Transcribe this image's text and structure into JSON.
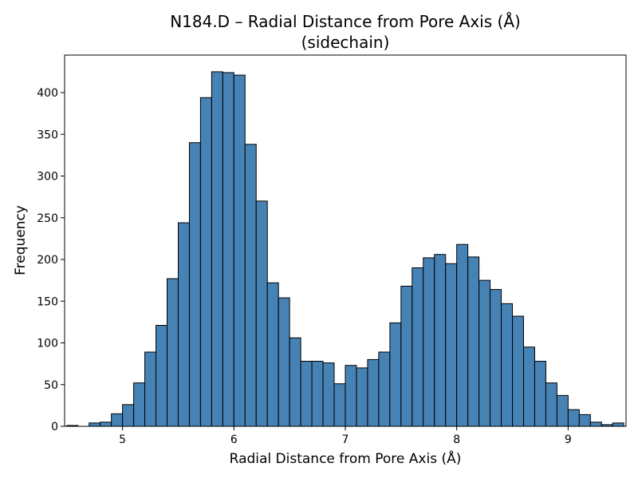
{
  "chart_data": {
    "type": "bar",
    "title": "N184.D – Radial Distance from Pore Axis (Å)",
    "subtitle": "(sidechain)",
    "xlabel": "Radial Distance from Pore Axis (Å)",
    "ylabel": "Frequency",
    "xlim": [
      4.48,
      9.52
    ],
    "ylim": [
      0,
      445
    ],
    "xticks": [
      5,
      6,
      7,
      8,
      9
    ],
    "yticks": [
      0,
      50,
      100,
      150,
      200,
      250,
      300,
      350,
      400
    ],
    "bin_start": 4.5,
    "bin_width": 0.1,
    "values": [
      1,
      0,
      4,
      5,
      15,
      26,
      52,
      89,
      121,
      177,
      244,
      340,
      394,
      425,
      424,
      421,
      338,
      270,
      172,
      154,
      106,
      78,
      78,
      76,
      51,
      73,
      70,
      80,
      89,
      124,
      168,
      190,
      202,
      206,
      195,
      218,
      203,
      175,
      164,
      147,
      132,
      95,
      78,
      52,
      37,
      20,
      14,
      5,
      2,
      4
    ],
    "bar_color": "#4682b4",
    "edge_color": "#000000",
    "grid": false
  }
}
